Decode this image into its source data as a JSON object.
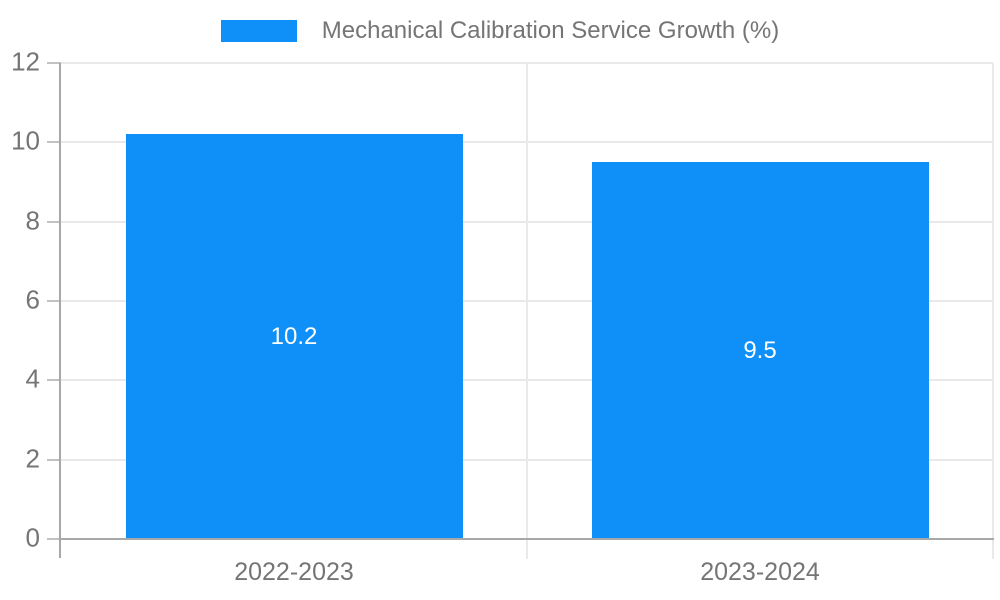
{
  "legend": {
    "label": "Mechanical Calibration Service Growth (%)"
  },
  "chart_data": {
    "type": "bar",
    "title": "",
    "categories": [
      "2022-2023",
      "2023-2024"
    ],
    "series": [
      {
        "name": "Mechanical Calibration Service Growth (%)",
        "values": [
          10.2,
          9.5
        ]
      }
    ],
    "values": [
      10.2,
      9.5
    ],
    "value_labels": [
      "10.2",
      "9.5"
    ],
    "xlabel": "",
    "ylabel": "",
    "ylim": [
      0,
      12
    ],
    "yticks": [
      0,
      2,
      4,
      6,
      8,
      10,
      12
    ],
    "grid": true,
    "legend_position": "top-center",
    "bar_width_fraction": 0.723,
    "colors": {
      "bar": "#0e90f8",
      "bar_label": "#ffffff",
      "axis_text": "#757575",
      "gridline": "#e9e9e9",
      "axis_line": "#a8a8a8",
      "tick_mark": "#c2c2c2",
      "background": "#ffffff"
    }
  }
}
